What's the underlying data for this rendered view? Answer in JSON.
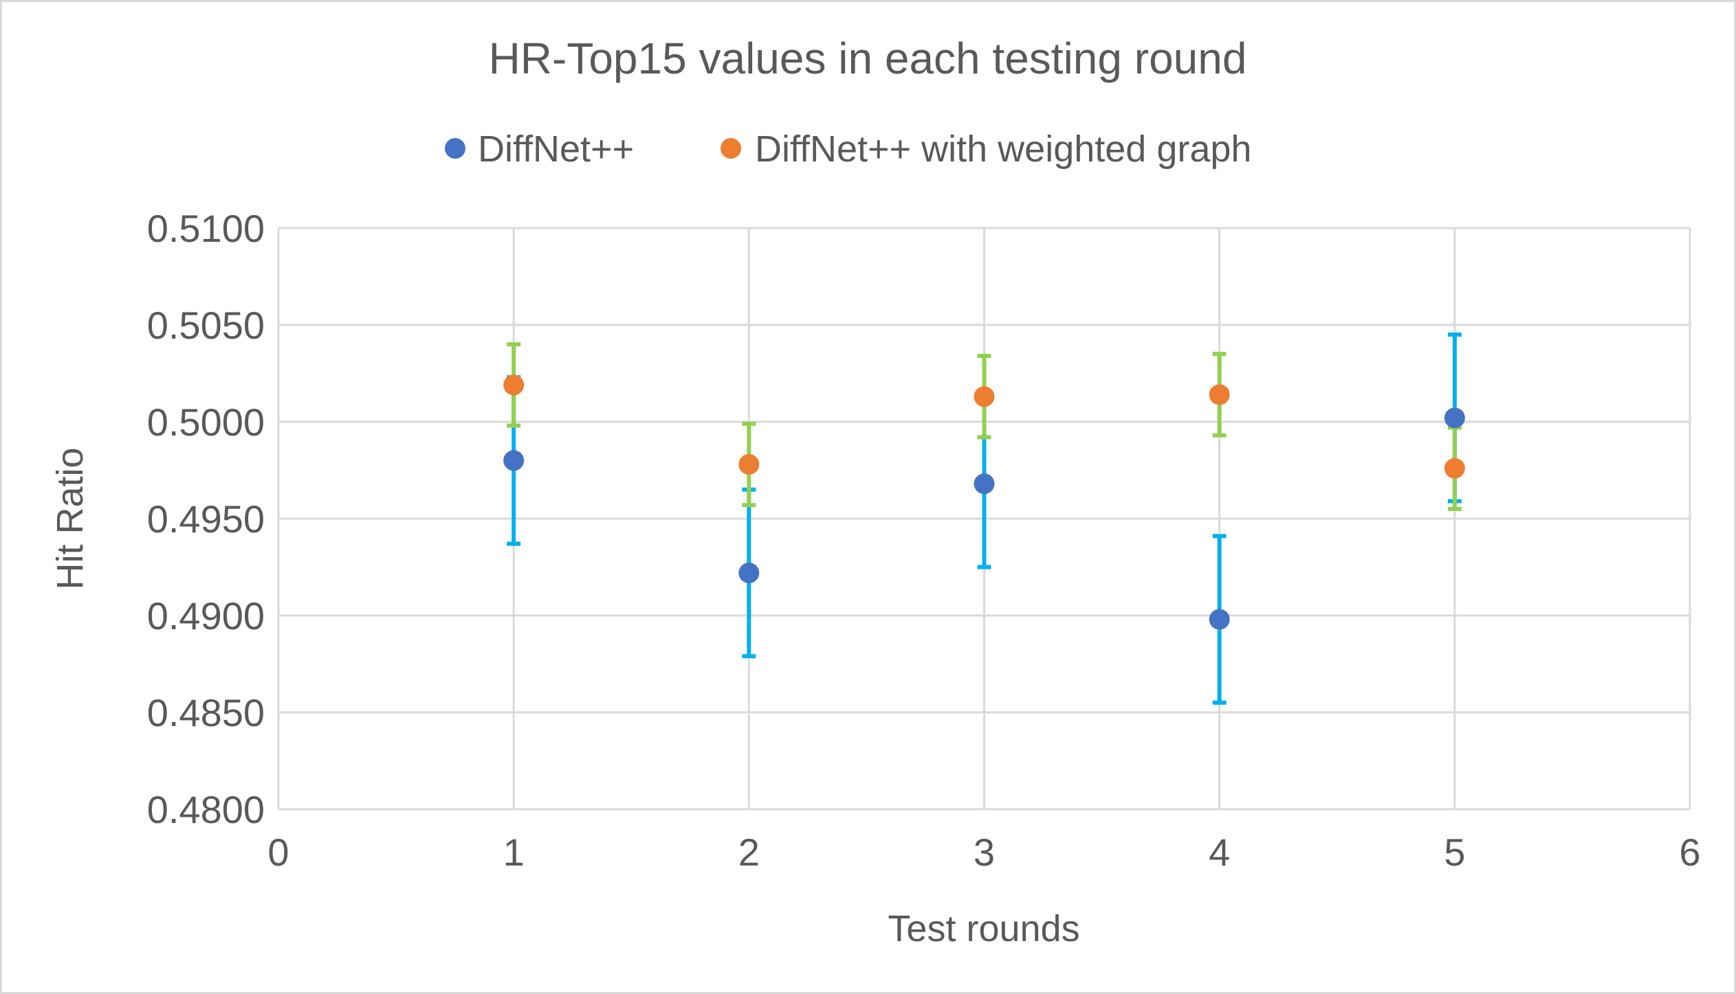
{
  "chart_data": {
    "type": "scatter",
    "title": "HR-Top15 values in each testing round",
    "xlabel": "Test rounds",
    "ylabel": "Hit Ratio",
    "xlim": [
      0,
      6
    ],
    "ylim": [
      0.48,
      0.51
    ],
    "x_ticks": [
      "0",
      "1",
      "2",
      "3",
      "4",
      "5",
      "6"
    ],
    "y_ticks": [
      "0.4800",
      "0.4850",
      "0.4900",
      "0.4950",
      "0.5000",
      "0.5050",
      "0.5100"
    ],
    "grid": true,
    "legend_position": "top",
    "series": [
      {
        "name": "DiffNet++",
        "color": "#4472c4",
        "error_color": "#00b0f0",
        "x": [
          1,
          2,
          3,
          4,
          5
        ],
        "y": [
          0.498,
          0.4922,
          0.4968,
          0.4898,
          0.5002
        ],
        "error": [
          0.0043,
          0.0043,
          0.0043,
          0.0043,
          0.0043
        ]
      },
      {
        "name": "DiffNet++ with weighted graph",
        "color": "#ed7d31",
        "error_color": "#92d050",
        "x": [
          1,
          2,
          3,
          4,
          5
        ],
        "y": [
          0.5019,
          0.4978,
          0.5013,
          0.5014,
          0.4976
        ],
        "error": [
          0.0021,
          0.0021,
          0.0021,
          0.0021,
          0.0021
        ]
      }
    ]
  }
}
